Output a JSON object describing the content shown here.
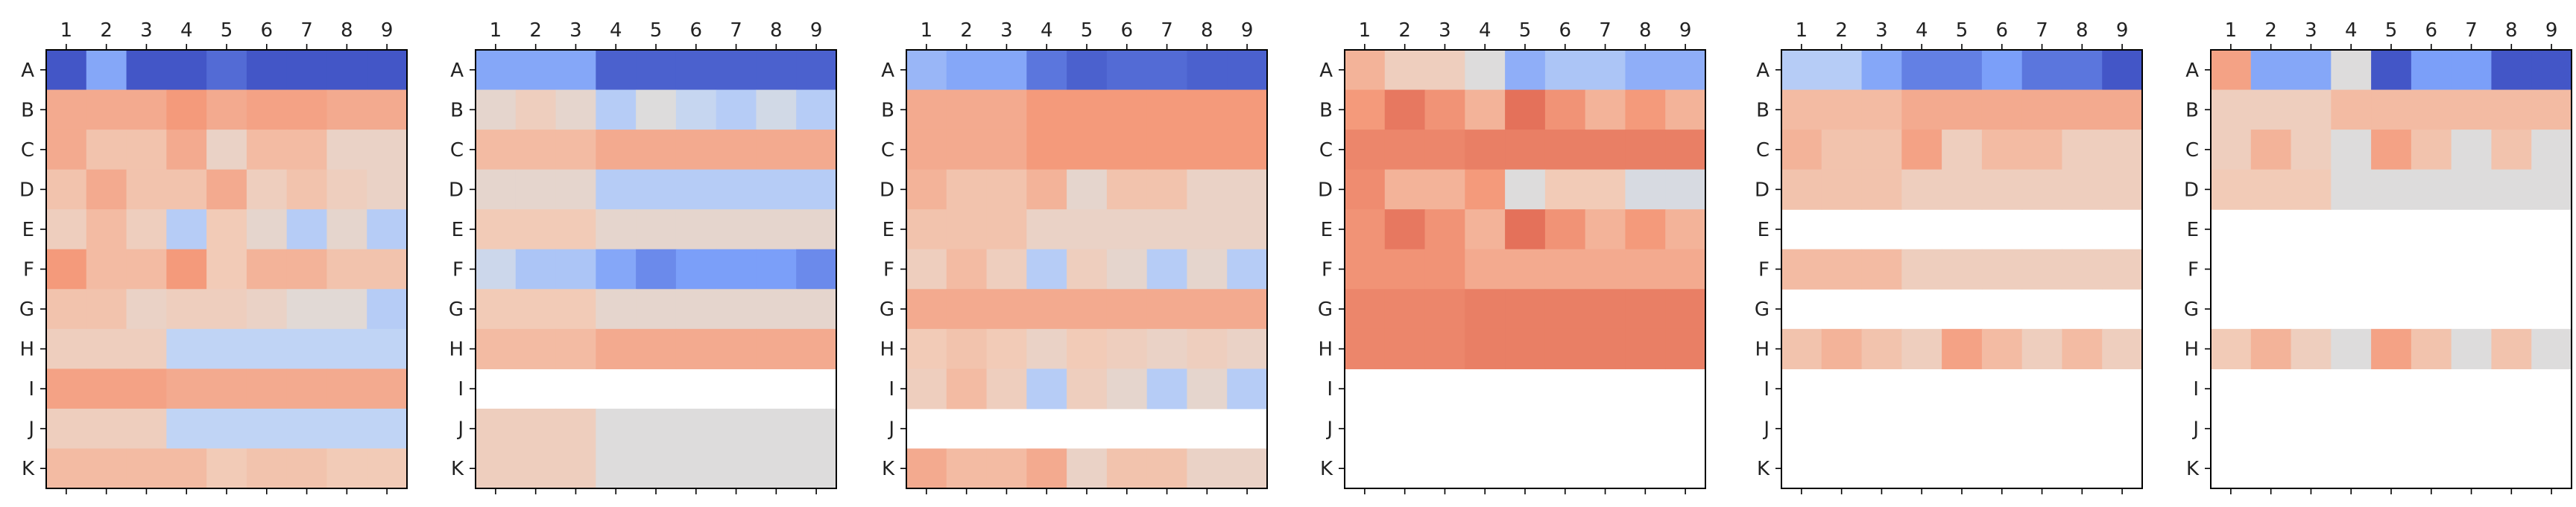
{
  "colors": {
    "cmap": "coolwarm",
    "dark_blue": "#3b4cc0",
    "mid_blue": "#7b9ff9",
    "light_blue": "#c0d4f5",
    "neutral": "#dddcdc",
    "light_red": "#f2cbb7",
    "mid_red": "#f49a7b",
    "dark_red": "#dc5d4a"
  },
  "chart_data": [
    {
      "type": "heatmap",
      "columns": [
        "1",
        "2",
        "3",
        "4",
        "5",
        "6",
        "7",
        "8",
        "9"
      ],
      "rows": [
        "A",
        "B",
        "C",
        "D",
        "E",
        "F",
        "G",
        "H",
        "I",
        "J",
        "K"
      ],
      "vmin": -1,
      "vmax": 1,
      "values": [
        [
          -0.95,
          -0.55,
          -0.95,
          -0.95,
          -0.85,
          -0.95,
          -0.95,
          -0.95,
          -0.95
        ],
        [
          0.45,
          0.45,
          0.45,
          0.55,
          0.45,
          0.5,
          0.5,
          0.45,
          0.45
        ],
        [
          0.45,
          0.3,
          0.3,
          0.45,
          0.15,
          0.35,
          0.35,
          0.15,
          0.15
        ],
        [
          0.3,
          0.45,
          0.3,
          0.3,
          0.45,
          0.2,
          0.3,
          0.2,
          0.15
        ],
        [
          0.2,
          0.35,
          0.2,
          -0.3,
          0.25,
          0.1,
          -0.3,
          0.1,
          -0.3
        ],
        [
          0.55,
          0.35,
          0.35,
          0.55,
          0.25,
          0.4,
          0.4,
          0.3,
          0.3
        ],
        [
          0.3,
          0.3,
          0.15,
          0.2,
          0.2,
          0.15,
          0.05,
          0.05,
          -0.3
        ],
        [
          0.2,
          0.2,
          0.2,
          -0.25,
          -0.25,
          -0.25,
          -0.25,
          -0.25,
          -0.25
        ],
        [
          0.5,
          0.5,
          0.5,
          0.45,
          0.45,
          0.45,
          0.45,
          0.45,
          0.45
        ],
        [
          0.2,
          0.2,
          0.2,
          -0.25,
          -0.25,
          -0.25,
          -0.25,
          -0.25,
          -0.25
        ],
        [
          0.35,
          0.35,
          0.35,
          0.35,
          0.25,
          0.3,
          0.3,
          0.25,
          0.25
        ]
      ]
    },
    {
      "type": "heatmap",
      "columns": [
        "1",
        "2",
        "3",
        "4",
        "5",
        "6",
        "7",
        "8",
        "9"
      ],
      "rows": [
        "A",
        "B",
        "C",
        "D",
        "E",
        "F",
        "G",
        "H",
        "I",
        "J",
        "K"
      ],
      "vmin": -1,
      "vmax": 1,
      "values": [
        [
          -0.55,
          -0.55,
          -0.55,
          -0.9,
          -0.9,
          -0.9,
          -0.9,
          -0.9,
          -0.9
        ],
        [
          0.1,
          0.2,
          0.1,
          -0.3,
          0.0,
          -0.2,
          -0.3,
          -0.1,
          -0.3
        ],
        [
          0.35,
          0.35,
          0.35,
          0.45,
          0.45,
          0.45,
          0.45,
          0.45,
          0.45
        ],
        [
          0.1,
          0.1,
          0.1,
          -0.3,
          -0.3,
          -0.3,
          -0.3,
          -0.3,
          -0.3
        ],
        [
          0.25,
          0.25,
          0.25,
          0.1,
          0.1,
          0.1,
          0.1,
          0.1,
          0.1
        ],
        [
          -0.15,
          -0.35,
          -0.35,
          -0.55,
          -0.7,
          -0.6,
          -0.6,
          -0.6,
          -0.7
        ],
        [
          0.25,
          0.25,
          0.25,
          0.1,
          0.1,
          0.1,
          0.1,
          0.1,
          0.1
        ],
        [
          0.35,
          0.35,
          0.35,
          0.45,
          0.45,
          0.45,
          0.45,
          0.45,
          0.45
        ],
        [
          null,
          null,
          null,
          null,
          null,
          null,
          null,
          null,
          null
        ],
        [
          0.2,
          0.2,
          0.2,
          0.0,
          0.0,
          0.0,
          0.0,
          0.0,
          0.0
        ],
        [
          0.2,
          0.2,
          0.2,
          0.0,
          0.0,
          0.0,
          0.0,
          0.0,
          0.0
        ]
      ]
    },
    {
      "type": "heatmap",
      "columns": [
        "1",
        "2",
        "3",
        "4",
        "5",
        "6",
        "7",
        "8",
        "9"
      ],
      "rows": [
        "A",
        "B",
        "C",
        "D",
        "E",
        "F",
        "G",
        "H",
        "I",
        "J",
        "K"
      ],
      "vmin": -1,
      "vmax": 1,
      "values": [
        [
          -0.45,
          -0.55,
          -0.55,
          -0.8,
          -0.9,
          -0.85,
          -0.85,
          -0.9,
          -0.9
        ],
        [
          0.45,
          0.45,
          0.45,
          0.55,
          0.55,
          0.55,
          0.55,
          0.55,
          0.55
        ],
        [
          0.45,
          0.45,
          0.45,
          0.55,
          0.55,
          0.55,
          0.55,
          0.55,
          0.55
        ],
        [
          0.4,
          0.3,
          0.3,
          0.4,
          0.1,
          0.3,
          0.3,
          0.15,
          0.15
        ],
        [
          0.3,
          0.3,
          0.3,
          0.15,
          0.15,
          0.15,
          0.15,
          0.15,
          0.15
        ],
        [
          0.2,
          0.35,
          0.2,
          -0.3,
          0.2,
          0.1,
          -0.3,
          0.1,
          -0.3
        ],
        [
          0.45,
          0.45,
          0.45,
          0.45,
          0.45,
          0.45,
          0.45,
          0.45,
          0.45
        ],
        [
          0.25,
          0.3,
          0.25,
          0.15,
          0.25,
          0.2,
          0.15,
          0.2,
          0.15
        ],
        [
          0.2,
          0.35,
          0.2,
          -0.3,
          0.2,
          0.1,
          -0.3,
          0.1,
          -0.3
        ],
        [
          null,
          null,
          null,
          null,
          null,
          null,
          null,
          null,
          null
        ],
        [
          0.45,
          0.35,
          0.35,
          0.45,
          0.15,
          0.3,
          0.3,
          0.15,
          0.15
        ]
      ]
    },
    {
      "type": "heatmap",
      "columns": [
        "1",
        "2",
        "3",
        "4",
        "5",
        "6",
        "7",
        "8",
        "9"
      ],
      "rows": [
        "A",
        "B",
        "C",
        "D",
        "E",
        "F",
        "G",
        "H",
        "I",
        "J",
        "K"
      ],
      "vmin": -1,
      "vmax": 1,
      "values": [
        [
          0.4,
          0.2,
          0.2,
          0.0,
          -0.5,
          -0.35,
          -0.35,
          -0.5,
          -0.5
        ],
        [
          0.55,
          0.8,
          0.6,
          0.4,
          0.85,
          0.6,
          0.4,
          0.55,
          0.4
        ],
        [
          0.7,
          0.7,
          0.7,
          0.75,
          0.75,
          0.75,
          0.75,
          0.75,
          0.75
        ],
        [
          0.65,
          0.4,
          0.4,
          0.55,
          0.0,
          0.25,
          0.25,
          -0.05,
          -0.05
        ],
        [
          0.6,
          0.8,
          0.6,
          0.4,
          0.85,
          0.6,
          0.4,
          0.55,
          0.4
        ],
        [
          0.6,
          0.6,
          0.6,
          0.45,
          0.45,
          0.45,
          0.45,
          0.45,
          0.45
        ],
        [
          0.7,
          0.7,
          0.7,
          0.75,
          0.75,
          0.75,
          0.75,
          0.75,
          0.75
        ],
        [
          0.7,
          0.7,
          0.7,
          0.75,
          0.75,
          0.75,
          0.75,
          0.75,
          0.75
        ],
        [
          null,
          null,
          null,
          null,
          null,
          null,
          null,
          null,
          null
        ],
        [
          null,
          null,
          null,
          null,
          null,
          null,
          null,
          null,
          null
        ],
        [
          null,
          null,
          null,
          null,
          null,
          null,
          null,
          null,
          null
        ]
      ]
    },
    {
      "type": "heatmap",
      "columns": [
        "1",
        "2",
        "3",
        "4",
        "5",
        "6",
        "7",
        "8",
        "9"
      ],
      "rows": [
        "A",
        "B",
        "C",
        "D",
        "E",
        "F",
        "G",
        "H",
        "I",
        "J",
        "K"
      ],
      "vmin": -1,
      "vmax": 1,
      "values": [
        [
          -0.3,
          -0.3,
          -0.55,
          -0.75,
          -0.75,
          -0.6,
          -0.8,
          -0.8,
          -0.95
        ],
        [
          0.35,
          0.35,
          0.35,
          0.45,
          0.45,
          0.45,
          0.45,
          0.45,
          0.45
        ],
        [
          0.4,
          0.3,
          0.3,
          0.5,
          0.2,
          0.35,
          0.35,
          0.2,
          0.2
        ],
        [
          0.3,
          0.3,
          0.3,
          0.2,
          0.2,
          0.2,
          0.2,
          0.2,
          0.2
        ],
        [
          null,
          null,
          null,
          null,
          null,
          null,
          null,
          null,
          null
        ],
        [
          0.35,
          0.35,
          0.35,
          0.2,
          0.2,
          0.2,
          0.2,
          0.2,
          0.2
        ],
        [
          null,
          null,
          null,
          null,
          null,
          null,
          null,
          null,
          null
        ],
        [
          0.3,
          0.4,
          0.3,
          0.2,
          0.5,
          0.35,
          0.2,
          0.35,
          0.2
        ],
        [
          null,
          null,
          null,
          null,
          null,
          null,
          null,
          null,
          null
        ],
        [
          null,
          null,
          null,
          null,
          null,
          null,
          null,
          null,
          null
        ],
        [
          null,
          null,
          null,
          null,
          null,
          null,
          null,
          null,
          null
        ]
      ]
    },
    {
      "type": "heatmap",
      "columns": [
        "1",
        "2",
        "3",
        "4",
        "5",
        "6",
        "7",
        "8",
        "9"
      ],
      "rows": [
        "A",
        "B",
        "C",
        "D",
        "E",
        "F",
        "G",
        "H",
        "I",
        "J",
        "K"
      ],
      "vmin": -1,
      "vmax": 1,
      "values": [
        [
          0.5,
          -0.55,
          -0.55,
          0.0,
          -0.95,
          -0.6,
          -0.6,
          -0.95,
          -0.95
        ],
        [
          0.2,
          0.2,
          0.2,
          0.35,
          0.35,
          0.35,
          0.35,
          0.35,
          0.35
        ],
        [
          0.2,
          0.4,
          0.2,
          0.0,
          0.5,
          0.3,
          0.0,
          0.3,
          0.0
        ],
        [
          0.25,
          0.25,
          0.25,
          0.0,
          0.0,
          0.0,
          0.0,
          0.0,
          0.0
        ],
        [
          null,
          null,
          null,
          null,
          null,
          null,
          null,
          null,
          null
        ],
        [
          null,
          null,
          null,
          null,
          null,
          null,
          null,
          null,
          null
        ],
        [
          null,
          null,
          null,
          null,
          null,
          null,
          null,
          null,
          null
        ],
        [
          0.25,
          0.4,
          0.2,
          0.0,
          0.5,
          0.3,
          0.0,
          0.3,
          0.0
        ],
        [
          null,
          null,
          null,
          null,
          null,
          null,
          null,
          null,
          null
        ],
        [
          null,
          null,
          null,
          null,
          null,
          null,
          null,
          null,
          null
        ],
        [
          null,
          null,
          null,
          null,
          null,
          null,
          null,
          null,
          null
        ]
      ]
    }
  ]
}
